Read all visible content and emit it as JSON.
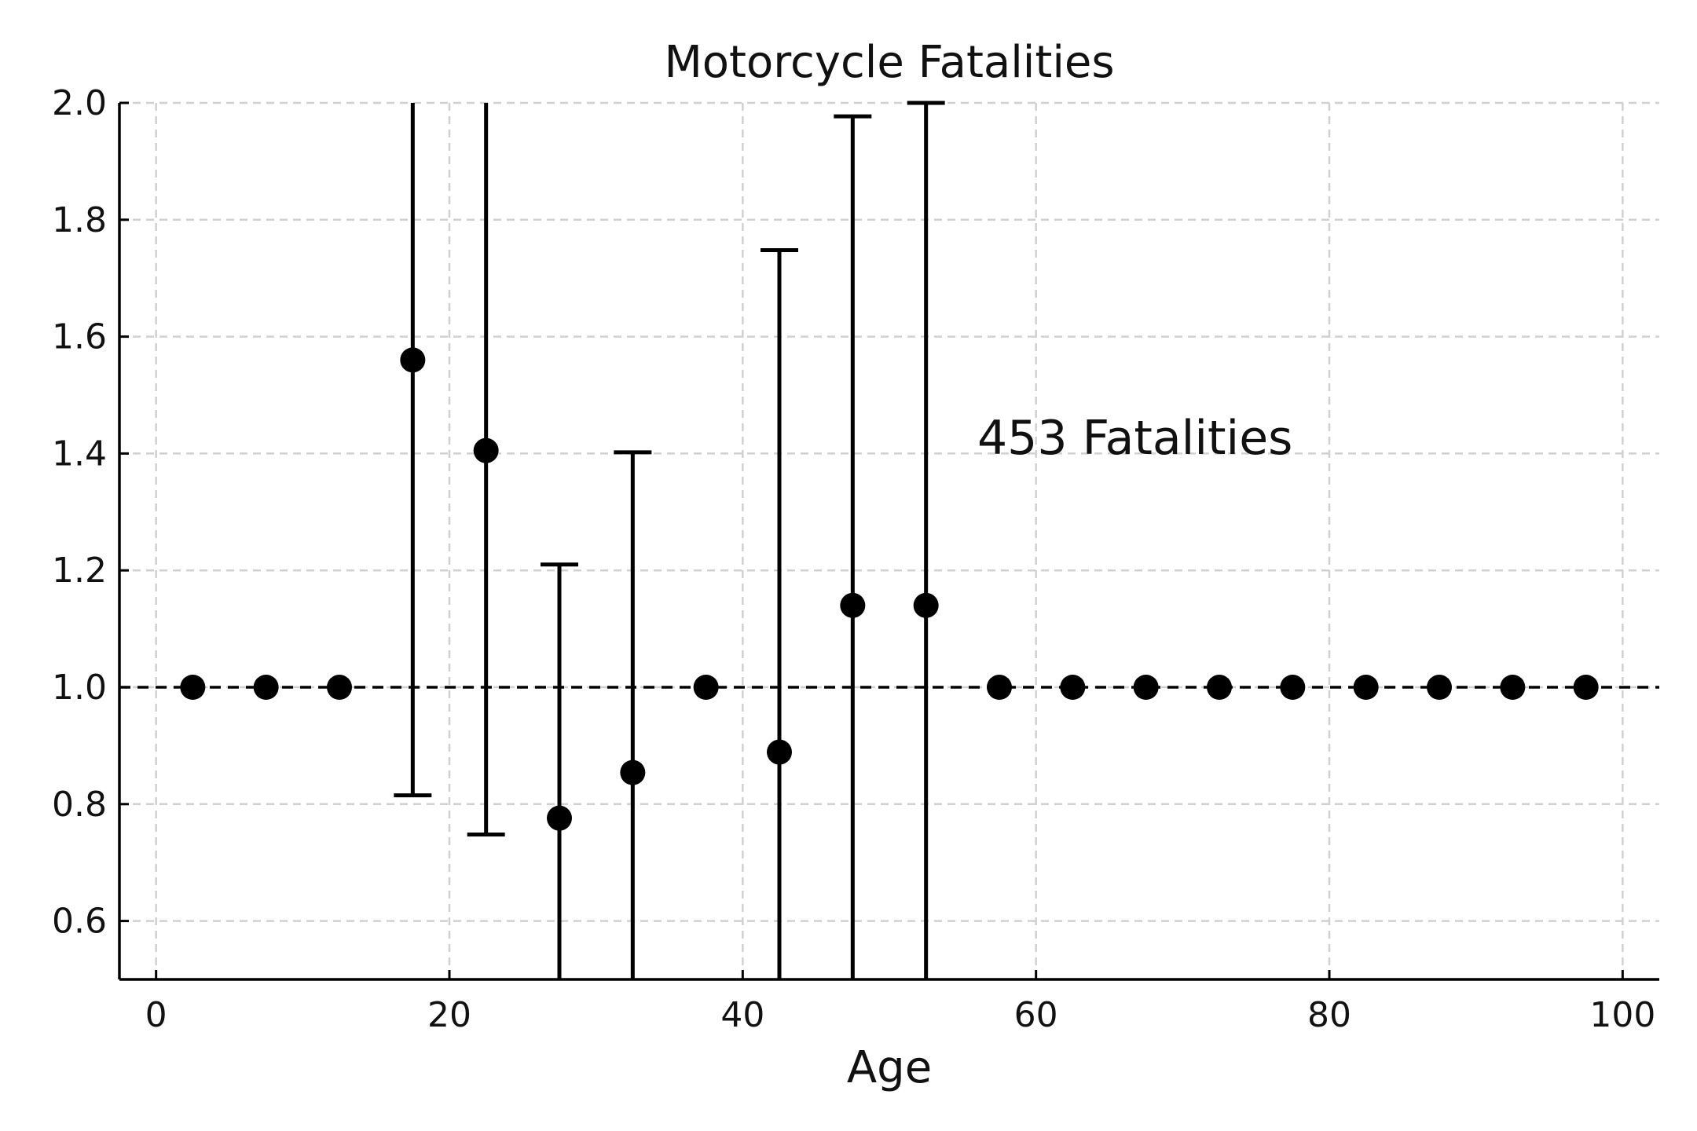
{
  "chart_data": {
    "type": "scatter",
    "title": "Motorcycle Fatalities",
    "xlabel": "Age",
    "ylabel": "",
    "xlim": [
      -2.5,
      102.5
    ],
    "ylim": [
      0.5,
      2.0
    ],
    "xticks": [
      0,
      20,
      40,
      60,
      80,
      100
    ],
    "yticks": [
      0.6,
      0.8,
      1.0,
      1.2,
      1.4,
      1.6,
      1.8,
      2.0
    ],
    "xtick_labels": [
      "0",
      "20",
      "40",
      "60",
      "80",
      "100"
    ],
    "ytick_labels": [
      "0.6",
      "0.8",
      "1.0",
      "1.2",
      "1.4",
      "1.6",
      "1.8",
      "2.0"
    ],
    "grid": true,
    "reference_line_y": 1.0,
    "annotation": "453 Fatalities",
    "color": "#000000",
    "grid_color": "#d0d0d0",
    "points": [
      {
        "x": 2.5,
        "y": 1.0,
        "lo": null,
        "hi": null
      },
      {
        "x": 7.5,
        "y": 1.0,
        "lo": null,
        "hi": null
      },
      {
        "x": 12.5,
        "y": 1.0,
        "lo": null,
        "hi": null
      },
      {
        "x": 17.5,
        "y": 1.56,
        "lo": 0.815,
        "hi": 2.3
      },
      {
        "x": 22.5,
        "y": 1.405,
        "lo": 0.748,
        "hi": 2.3
      },
      {
        "x": 27.5,
        "y": 0.776,
        "lo": 0.3,
        "hi": 1.21
      },
      {
        "x": 32.5,
        "y": 0.854,
        "lo": 0.3,
        "hi": 1.402
      },
      {
        "x": 37.5,
        "y": 1.0,
        "lo": null,
        "hi": null
      },
      {
        "x": 42.5,
        "y": 0.889,
        "lo": 0.3,
        "hi": 1.748
      },
      {
        "x": 47.5,
        "y": 1.14,
        "lo": 0.3,
        "hi": 1.977
      },
      {
        "x": 52.5,
        "y": 1.14,
        "lo": 0.3,
        "hi": 2.0
      },
      {
        "x": 57.5,
        "y": 1.0,
        "lo": null,
        "hi": null
      },
      {
        "x": 62.5,
        "y": 1.0,
        "lo": null,
        "hi": null
      },
      {
        "x": 67.5,
        "y": 1.0,
        "lo": null,
        "hi": null
      },
      {
        "x": 72.5,
        "y": 1.0,
        "lo": null,
        "hi": null
      },
      {
        "x": 77.5,
        "y": 1.0,
        "lo": null,
        "hi": null
      },
      {
        "x": 82.5,
        "y": 1.0,
        "lo": null,
        "hi": null
      },
      {
        "x": 87.5,
        "y": 1.0,
        "lo": null,
        "hi": null
      },
      {
        "x": 92.5,
        "y": 1.0,
        "lo": null,
        "hi": null
      },
      {
        "x": 97.5,
        "y": 1.0,
        "lo": null,
        "hi": null
      }
    ]
  }
}
